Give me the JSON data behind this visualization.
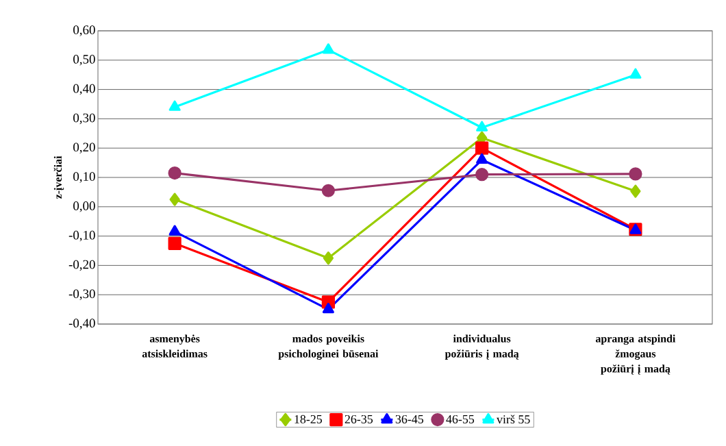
{
  "chart_data": {
    "type": "line",
    "ylabel": "z-įverčiai",
    "categories": [
      "asmenybės atsiskleidimas",
      "mados poveikis psichologinei būsenai",
      "individualus požiūris į madą",
      "apranga atspindi žmogaus požiūrį į madą"
    ],
    "series": [
      {
        "name": "18-25",
        "color": "#99cc00",
        "marker": "diamond",
        "values": [
          0.025,
          -0.175,
          0.235,
          0.053
        ]
      },
      {
        "name": "26-35",
        "color": "#ff0000",
        "marker": "square",
        "values": [
          -0.125,
          -0.325,
          0.2,
          -0.077
        ]
      },
      {
        "name": "36-45",
        "color": "#0000ff",
        "marker": "triangle",
        "values": [
          -0.085,
          -0.35,
          0.16,
          -0.08
        ]
      },
      {
        "name": "46-55",
        "color": "#993366",
        "marker": "circle",
        "values": [
          0.115,
          0.055,
          0.11,
          0.112
        ]
      },
      {
        "name": "virš 55",
        "color": "#00ffff",
        "marker": "triangle",
        "values": [
          0.34,
          0.535,
          0.27,
          0.45
        ]
      }
    ],
    "ylim": [
      -0.4,
      0.6
    ],
    "yticks": [
      {
        "value": -0.4,
        "label": "-0,40"
      },
      {
        "value": -0.3,
        "label": "-0,30"
      },
      {
        "value": -0.2,
        "label": "-0,20"
      },
      {
        "value": -0.1,
        "label": "-0,10"
      },
      {
        "value": 0,
        "label": "0,00"
      },
      {
        "value": 0.1,
        "label": "0,10"
      },
      {
        "value": 0.2,
        "label": "0,20"
      },
      {
        "value": 0.3,
        "label": "0,30"
      },
      {
        "value": 0.4,
        "label": "0,40"
      },
      {
        "value": 0.5,
        "label": "0,50"
      },
      {
        "value": 0.6,
        "label": "0,60"
      }
    ],
    "grid": "y",
    "legend": "bottom",
    "line_style": "solid"
  }
}
